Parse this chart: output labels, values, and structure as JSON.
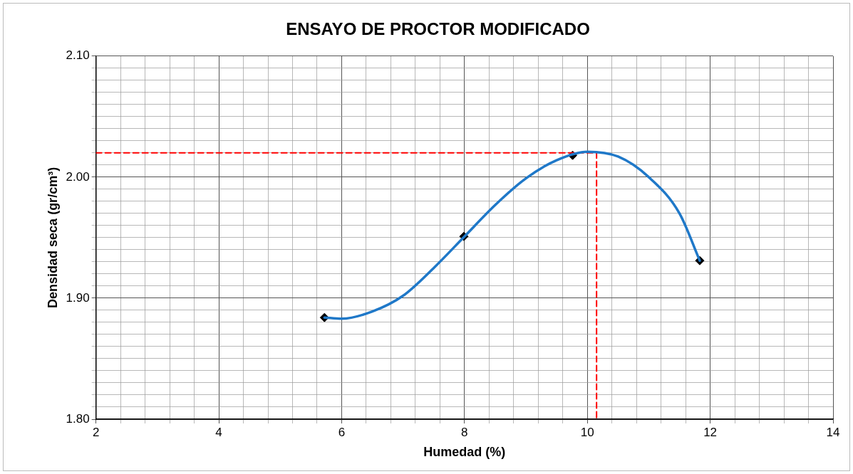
{
  "chart_data": {
    "type": "scatter",
    "title": "ENSAYO DE PROCTOR MODIFICADO",
    "xlabel": "Humedad (%)",
    "ylabel": "Densidad seca (gr/cm³)",
    "xlim": [
      2,
      14
    ],
    "ylim": [
      1.8,
      2.1
    ],
    "xticks": [
      2,
      {
        "value": 2.4,
        "label": null
      },
      {
        "value": 2.8,
        "label": null
      },
      {
        "value": 3.2,
        "label": null
      },
      {
        "value": 3.6,
        "label": null
      },
      4,
      {
        "value": 4.4,
        "label": null
      },
      {
        "value": 4.8,
        "label": null
      },
      {
        "value": 5.2,
        "label": null
      },
      {
        "value": 5.6,
        "label": null
      },
      6,
      {
        "value": 6.4,
        "label": null
      },
      {
        "value": 6.8,
        "label": null
      },
      {
        "value": 7.2,
        "label": null
      },
      {
        "value": 7.6,
        "label": null
      },
      8,
      {
        "value": 8.4,
        "label": null
      },
      {
        "value": 8.8,
        "label": null
      },
      {
        "value": 9.2,
        "label": null
      },
      {
        "value": 9.6,
        "label": null
      },
      10,
      {
        "value": 10.4,
        "label": null
      },
      {
        "value": 10.8,
        "label": null
      },
      {
        "value": 11.2,
        "label": null
      },
      {
        "value": 11.6,
        "label": null
      },
      12,
      {
        "value": 12.4,
        "label": null
      },
      {
        "value": 12.8,
        "label": null
      },
      {
        "value": 13.2,
        "label": null
      },
      {
        "value": 13.6,
        "label": null
      },
      14
    ],
    "yticks": [
      {
        "value": 1.8,
        "label": "1.80"
      },
      {
        "value": 1.81,
        "label": null
      },
      {
        "value": 1.82,
        "label": null
      },
      {
        "value": 1.83,
        "label": null
      },
      {
        "value": 1.84,
        "label": null
      },
      {
        "value": 1.85,
        "label": null
      },
      {
        "value": 1.86,
        "label": null
      },
      {
        "value": 1.87,
        "label": null
      },
      {
        "value": 1.88,
        "label": null
      },
      {
        "value": 1.89,
        "label": null
      },
      {
        "value": 1.9,
        "label": "1.90"
      },
      {
        "value": 1.91,
        "label": null
      },
      {
        "value": 1.92,
        "label": null
      },
      {
        "value": 1.93,
        "label": null
      },
      {
        "value": 1.94,
        "label": null
      },
      {
        "value": 1.95,
        "label": null
      },
      {
        "value": 1.96,
        "label": null
      },
      {
        "value": 1.97,
        "label": null
      },
      {
        "value": 1.98,
        "label": null
      },
      {
        "value": 1.99,
        "label": null
      },
      {
        "value": 2.0,
        "label": "2.00"
      },
      {
        "value": 2.01,
        "label": null
      },
      {
        "value": 2.02,
        "label": null
      },
      {
        "value": 2.03,
        "label": null
      },
      {
        "value": 2.04,
        "label": null
      },
      {
        "value": 2.05,
        "label": null
      },
      {
        "value": 2.06,
        "label": null
      },
      {
        "value": 2.07,
        "label": null
      },
      {
        "value": 2.08,
        "label": null
      },
      {
        "value": 2.09,
        "label": null
      },
      {
        "value": 2.1,
        "label": "2.10"
      }
    ],
    "grid": true,
    "series": [
      {
        "type": "line",
        "color": "#1f78c8",
        "marker": "none",
        "x": [
          5.72,
          6,
          6.5,
          7,
          7.5,
          8,
          8.5,
          9,
          9.5,
          10,
          10.5,
          11,
          11.5,
          11.83
        ],
        "values": [
          1.884,
          1.883,
          1.889,
          1.902,
          1.925,
          1.951,
          1.977,
          1.999,
          2.014,
          2.021,
          2.017,
          2.0,
          1.97,
          1.931
        ]
      },
      {
        "type": "line",
        "color": "#ff0000",
        "marker": "none",
        "line_style": "dashed",
        "x": [
          2,
          10.15,
          10.15
        ],
        "values": [
          2.02,
          2.02,
          1.8
        ]
      },
      {
        "type": "scatter",
        "color": "#000000",
        "marker": "diamond",
        "x": [
          5.72,
          7.99,
          9.76,
          11.83
        ],
        "values": [
          1.884,
          1.951,
          2.018,
          1.931
        ]
      }
    ]
  }
}
